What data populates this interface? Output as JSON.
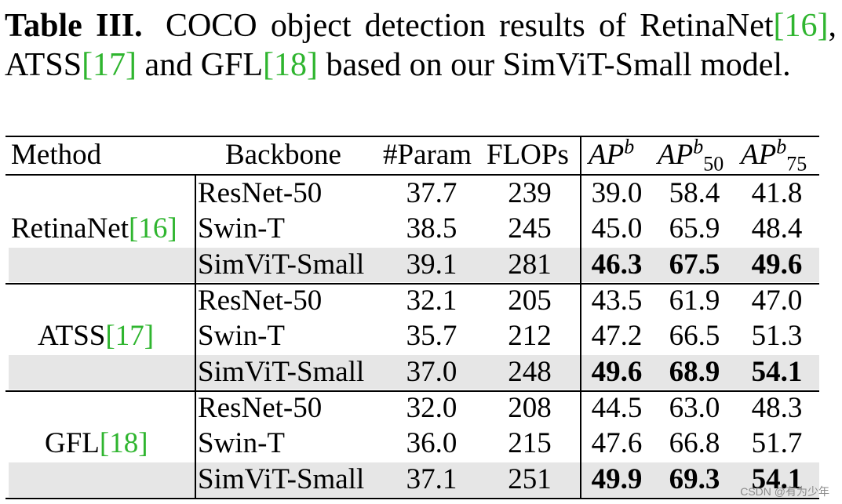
{
  "caption": {
    "label": "Table III.",
    "text_1": "COCO object detection results of RetinaNet",
    "ref_1": "[16]",
    "text_2": ", ATSS",
    "ref_2": "[17]",
    "text_3": " and GFL",
    "ref_3": "[18]",
    "text_4": " based on our SimViT-Small model."
  },
  "header": {
    "method": "Method",
    "backbone": "Backbone",
    "param": "#Param",
    "flops": "FLOPs",
    "ap_base": "AP",
    "ap_sup": "b",
    "ap50_sub": "50",
    "ap75_sub": "75"
  },
  "groups": [
    {
      "method": "RetinaNet",
      "ref": "[16]",
      "rows": [
        {
          "backbone": "ResNet-50",
          "param": "37.7",
          "flops": "239",
          "ap": "39.0",
          "ap50": "58.4",
          "ap75": "41.8"
        },
        {
          "backbone": "Swin-T",
          "param": "38.5",
          "flops": "245",
          "ap": "45.0",
          "ap50": "65.9",
          "ap75": "48.4"
        },
        {
          "backbone": "SimViT-Small",
          "param": "39.1",
          "flops": "281",
          "ap": "46.3",
          "ap50": "67.5",
          "ap75": "49.6"
        }
      ]
    },
    {
      "method": "ATSS",
      "ref": "[17]",
      "rows": [
        {
          "backbone": "ResNet-50",
          "param": "32.1",
          "flops": "205",
          "ap": "43.5",
          "ap50": "61.9",
          "ap75": "47.0"
        },
        {
          "backbone": "Swin-T",
          "param": "35.7",
          "flops": "212",
          "ap": "47.2",
          "ap50": "66.5",
          "ap75": "51.3"
        },
        {
          "backbone": "SimViT-Small",
          "param": "37.0",
          "flops": "248",
          "ap": "49.6",
          "ap50": "68.9",
          "ap75": "54.1"
        }
      ]
    },
    {
      "method": "GFL",
      "ref": "[18]",
      "rows": [
        {
          "backbone": "ResNet-50",
          "param": "32.0",
          "flops": "208",
          "ap": "44.5",
          "ap50": "63.0",
          "ap75": "48.3"
        },
        {
          "backbone": "Swin-T",
          "param": "36.0",
          "flops": "215",
          "ap": "47.6",
          "ap50": "66.8",
          "ap75": "51.7"
        },
        {
          "backbone": "SimViT-Small",
          "param": "37.1",
          "flops": "251",
          "ap": "49.9",
          "ap50": "69.3",
          "ap75": "54.1"
        }
      ]
    }
  ],
  "watermark": "CSDN @有为少年"
}
